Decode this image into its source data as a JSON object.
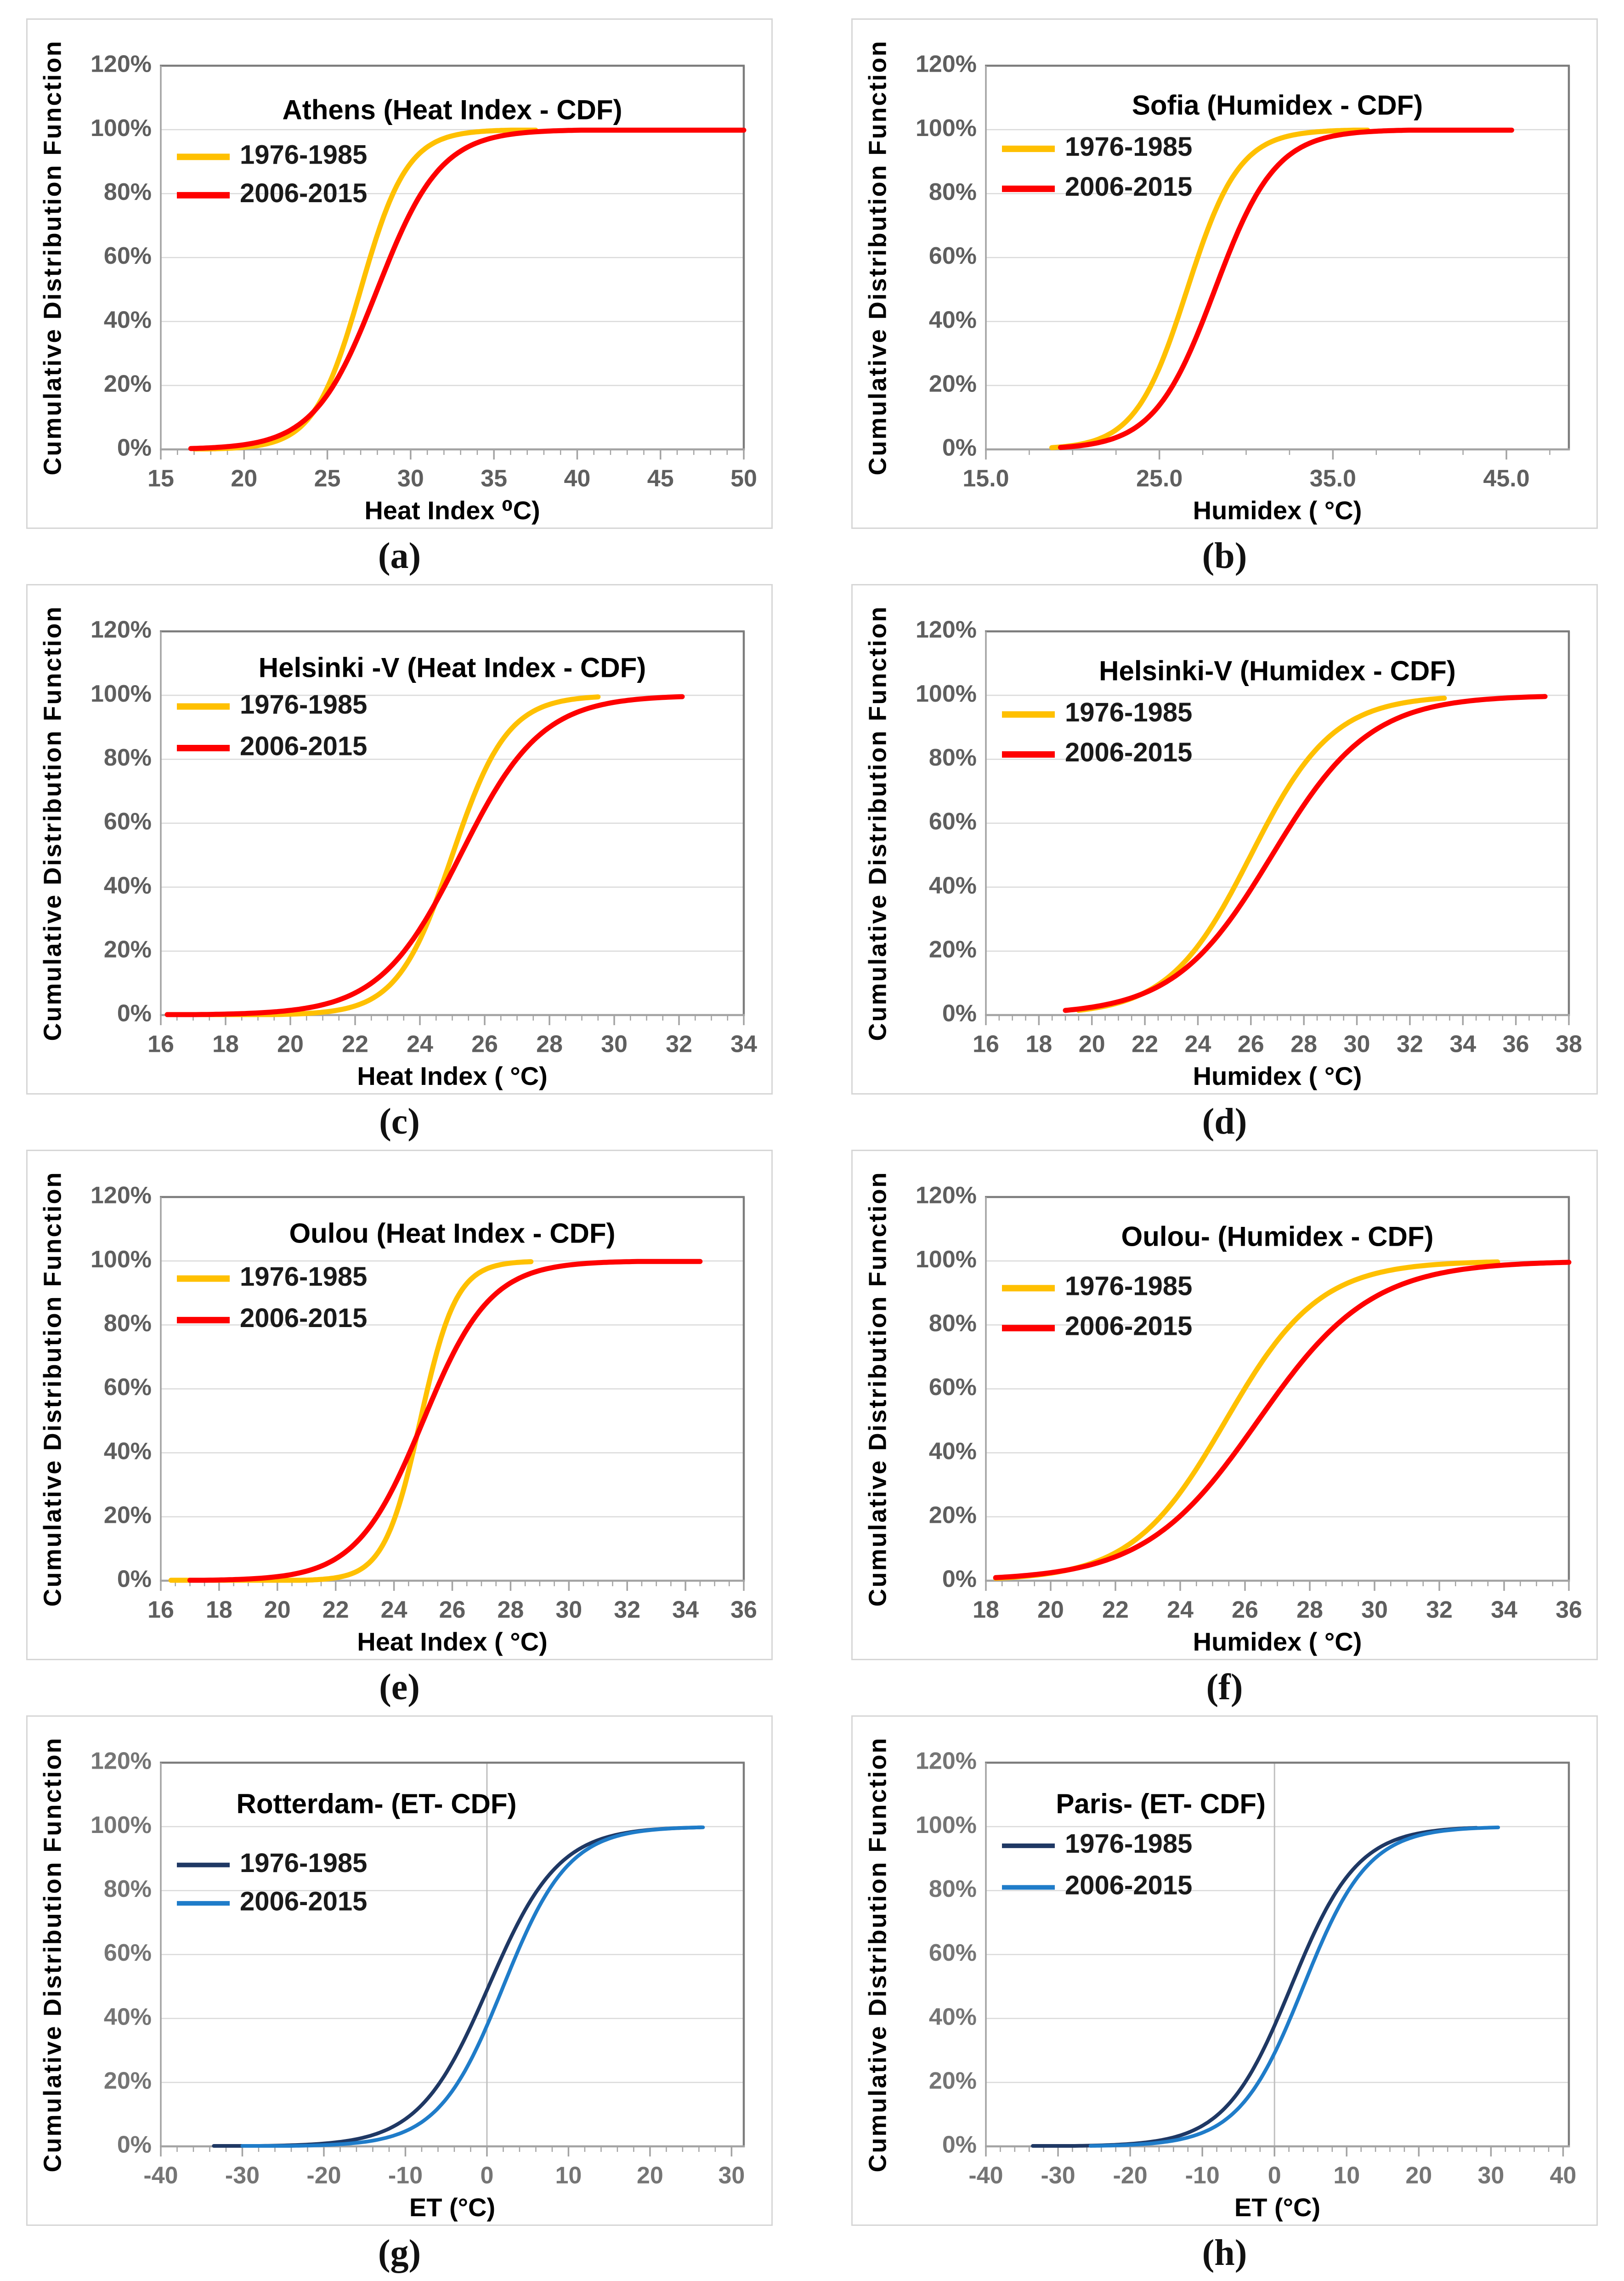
{
  "figure": {
    "y_axis": {
      "title": "Cumulative Distribution Function",
      "tick_labels": [
        "0%",
        "20%",
        "40%",
        "60%",
        "80%",
        "100%",
        "120%"
      ],
      "tick_pcts": [
        0,
        20,
        40,
        60,
        80,
        100,
        120
      ],
      "gridline_pcts": [
        20,
        40,
        60,
        80,
        100
      ],
      "max_pct": 120
    },
    "percentiles": [
      1,
      5,
      10,
      25,
      50,
      75,
      90,
      95,
      99
    ],
    "legend_labels": [
      "1976-1985",
      "2006-2015"
    ]
  },
  "palette": {
    "gold": "#FFC000",
    "red": "#FE0000",
    "navy": "#1F3864",
    "blue": "#1F7CC9",
    "grid": "#DADADA",
    "axis": "#A3A3A3",
    "border": "#7C7C7C",
    "zero_line": "#BFBFBF",
    "title_text": "#000000",
    "legend_text": "#1A1A1A",
    "box_border": "#D6D6D6"
  },
  "chart_data": [
    {
      "id": "a",
      "panel_label": "(a)",
      "type": "line",
      "title": "Athens (Heat Index - CDF)",
      "xlabel": "Heat Index ⁰C)",
      "ylabel": "Cumulative Distribution Function",
      "x_min": 15,
      "x_max": 50,
      "x_minor_step": 1,
      "x_tick_labels": [
        "15",
        "20",
        "25",
        "30",
        "35",
        "40",
        "45",
        "50"
      ],
      "zero_gridline": false,
      "tick_color": "#5F5F5F",
      "title_pct": 105.5,
      "title_cx": 0.5,
      "legend": {
        "rows_pct": [
          91.5,
          79.5
        ]
      },
      "curve_width": 11,
      "swatch_width": 14,
      "series": [
        {
          "label": "1976-1985",
          "color_key": "gold",
          "logistic": {
            "median": 27.0,
            "scale": 1.4
          },
          "x_start": 17.0,
          "x_end": 37.5,
          "x_at_percentiles": [
            20.6,
            22.9,
            23.9,
            25.5,
            27.0,
            28.5,
            30.1,
            31.1,
            33.4
          ]
        },
        {
          "label": "2006-2015",
          "color_key": "red",
          "logistic": {
            "median": 28.0,
            "scale": 1.9
          },
          "x_start": 16.8,
          "x_end": 50.0,
          "x_at_percentiles": [
            19.3,
            22.4,
            23.8,
            25.9,
            28.0,
            30.1,
            32.2,
            33.6,
            36.7
          ]
        }
      ]
    },
    {
      "id": "b",
      "panel_label": "(b)",
      "type": "line",
      "title": "Sofia (Humidex - CDF)",
      "xlabel": "Humidex ( °C)",
      "ylabel": "Cumulative Distribution Function",
      "x_min": 15,
      "x_max": 48.6,
      "x_minor_step": 2.5,
      "x_tick_labels": [
        "15.0",
        "25.0",
        "35.0",
        "45.0"
      ],
      "zero_gridline": false,
      "tick_color": "#5F5F5F",
      "title_pct": 107,
      "title_cx": 0.5,
      "legend": {
        "rows_pct": [
          94,
          81.5
        ]
      },
      "curve_width": 11,
      "swatch_width": 14,
      "series": [
        {
          "label": "1976-1985",
          "color_key": "gold",
          "logistic": {
            "median": 26.6,
            "scale": 1.5
          },
          "x_start": 18.8,
          "x_end": 37.0,
          "x_at_percentiles": [
            19.7,
            22.2,
            23.3,
            25.0,
            26.6,
            28.2,
            29.9,
            31.0,
            33.5
          ]
        },
        {
          "label": "2006-2015",
          "color_key": "red",
          "logistic": {
            "median": 28.2,
            "scale": 1.75
          },
          "x_start": 19.3,
          "x_end": 45.3,
          "x_at_percentiles": [
            20.2,
            23.0,
            24.4,
            26.3,
            28.2,
            30.1,
            32.0,
            33.4,
            36.2
          ]
        }
      ]
    },
    {
      "id": "c",
      "panel_label": "(c)",
      "type": "line",
      "title": "Helsinki -V (Heat Index - CDF)",
      "xlabel": "Heat Index ( °C)",
      "ylabel": "Cumulative Distribution Function",
      "x_min": 16,
      "x_max": 34,
      "x_minor_step": 0.5,
      "x_tick_labels": [
        "16",
        "18",
        "20",
        "22",
        "24",
        "26",
        "28",
        "30",
        "32",
        "34"
      ],
      "zero_gridline": false,
      "tick_color": "#5F5F5F",
      "title_pct": 108,
      "title_cx": 0.5,
      "legend": {
        "rows_pct": [
          96.5,
          83.5
        ]
      },
      "curve_width": 11,
      "swatch_width": 14,
      "series": [
        {
          "label": "1976-1985",
          "color_key": "gold",
          "logistic": {
            "median": 25.0,
            "scale": 0.85
          },
          "x_start": 16.2,
          "x_end": 29.5,
          "x_at_percentiles": [
            21.1,
            22.5,
            23.1,
            24.1,
            25.0,
            25.9,
            26.9,
            27.5,
            28.9
          ]
        },
        {
          "label": "2006-2015",
          "color_key": "red",
          "logistic": {
            "median": 25.25,
            "scale": 1.25
          },
          "x_start": 16.2,
          "x_end": 32.1,
          "x_at_percentiles": [
            19.5,
            21.6,
            22.5,
            23.9,
            25.3,
            26.6,
            28.0,
            28.9,
            31.0
          ]
        }
      ]
    },
    {
      "id": "d",
      "panel_label": "(d)",
      "type": "line",
      "title": "Helsinki-V (Humidex - CDF)",
      "xlabel": "Humidex ( °C)",
      "ylabel": "Cumulative Distribution Function",
      "x_min": 16,
      "x_max": 38,
      "x_minor_step": 0.5,
      "x_tick_labels": [
        "16",
        "18",
        "20",
        "22",
        "24",
        "26",
        "28",
        "30",
        "32",
        "34",
        "36",
        "38"
      ],
      "zero_gridline": false,
      "tick_color": "#5F5F5F",
      "title_pct": 107,
      "title_cx": 0.5,
      "legend": {
        "rows_pct": [
          94,
          81.5
        ]
      },
      "curve_width": 11,
      "swatch_width": 14,
      "series": [
        {
          "label": "1976-1985",
          "color_key": "gold",
          "logistic": {
            "median": 26.0,
            "scale": 1.55
          },
          "x_start": 19.5,
          "x_end": 33.3,
          "x_at_percentiles": [
            18.9,
            21.4,
            22.6,
            24.3,
            26.0,
            27.7,
            29.4,
            30.6,
            33.1
          ]
        },
        {
          "label": "2006-2015",
          "color_key": "red",
          "logistic": {
            "median": 26.8,
            "scale": 1.85
          },
          "x_start": 19.0,
          "x_end": 37.1,
          "x_at_percentiles": [
            18.3,
            21.4,
            22.7,
            24.8,
            26.8,
            28.8,
            30.9,
            32.2,
            35.3
          ]
        }
      ]
    },
    {
      "id": "e",
      "panel_label": "(e)",
      "type": "line",
      "title": "Oulou (Heat Index - CDF)",
      "xlabel": "Heat Index ( °C)",
      "ylabel": "Cumulative Distribution Function",
      "x_min": 16,
      "x_max": 36,
      "x_minor_step": 0.5,
      "x_tick_labels": [
        "16",
        "18",
        "20",
        "22",
        "24",
        "26",
        "28",
        "30",
        "32",
        "34",
        "36"
      ],
      "zero_gridline": false,
      "tick_color": "#5F5F5F",
      "title_pct": 108,
      "title_cx": 0.5,
      "legend": {
        "rows_pct": [
          94.5,
          81.5
        ]
      },
      "curve_width": 11,
      "swatch_width": 14,
      "series": [
        {
          "label": "1976-1985",
          "color_key": "gold",
          "logistic": {
            "median": 24.9,
            "scale": 0.62
          },
          "x_start": 16.35,
          "x_end": 28.7,
          "x_at_percentiles": [
            22.1,
            23.1,
            23.5,
            24.2,
            24.9,
            25.6,
            26.3,
            26.7,
            27.7
          ]
        },
        {
          "label": "2006-2015",
          "color_key": "red",
          "logistic": {
            "median": 25.0,
            "scale": 1.15
          },
          "x_start": 17.0,
          "x_end": 34.5,
          "x_at_percentiles": [
            19.7,
            21.6,
            22.5,
            23.7,
            25.0,
            26.3,
            27.5,
            28.4,
            30.3
          ]
        }
      ]
    },
    {
      "id": "f",
      "panel_label": "(f)",
      "type": "line",
      "title": "Oulou- (Humidex - CDF)",
      "xlabel": "Humidex ( °C)",
      "ylabel": "Cumulative Distribution Function",
      "x_min": 18,
      "x_max": 36,
      "x_minor_step": 0.5,
      "x_tick_labels": [
        "18",
        "20",
        "22",
        "24",
        "26",
        "28",
        "30",
        "32",
        "34",
        "36"
      ],
      "zero_gridline": false,
      "tick_color": "#5F5F5F",
      "title_pct": 107,
      "title_cx": 0.5,
      "legend": {
        "rows_pct": [
          91.5,
          79
        ]
      },
      "curve_width": 11,
      "swatch_width": 14,
      "series": [
        {
          "label": "1976-1985",
          "color_key": "gold",
          "logistic": {
            "median": 25.4,
            "scale": 1.45
          },
          "x_start": 18.3,
          "x_end": 33.8,
          "x_at_percentiles": [
            18.7,
            21.1,
            22.2,
            23.8,
            25.4,
            27.0,
            28.6,
            29.7,
            32.1
          ]
        },
        {
          "label": "2006-2015",
          "color_key": "red",
          "logistic": {
            "median": 26.4,
            "scale": 1.75
          },
          "x_start": 18.3,
          "x_end": 36.0,
          "x_at_percentiles": [
            18.4,
            21.2,
            22.6,
            24.5,
            26.4,
            28.3,
            30.2,
            31.6,
            34.4
          ]
        }
      ]
    },
    {
      "id": "g",
      "panel_label": "(g)",
      "type": "line",
      "title": "Rotterdam- (ET- CDF)",
      "xlabel": "ET (°C)",
      "ylabel": "Cumulative Distribution Function",
      "x_min": -40,
      "x_max": 31.5,
      "x_minor_step": 2,
      "x_tick_labels": [
        "-40",
        "-30",
        "-20",
        "-10",
        "0",
        "10",
        "20",
        "30"
      ],
      "zero_gridline": true,
      "tick_color": "#757575",
      "title_pct": 106.5,
      "title_cx": 0.37,
      "legend": {
        "rows_pct": [
          88,
          76
        ]
      },
      "curve_width": 8,
      "swatch_width": 10,
      "series": [
        {
          "label": "1976-1985",
          "color_key": "navy",
          "logistic": {
            "median": 0.2,
            "scale": 4.3
          },
          "x_start": -33.5,
          "x_end": 26.3,
          "x_at_percentiles": [
            -19.6,
            -12.5,
            -9.2,
            -4.5,
            0.2,
            4.9,
            9.6,
            12.9,
            20.0
          ]
        },
        {
          "label": "2006-2015",
          "color_key": "blue",
          "logistic": {
            "median": 2.0,
            "scale": 4.0
          },
          "x_start": -30.0,
          "x_end": 26.5,
          "x_at_percentiles": [
            -16.4,
            -9.8,
            -6.8,
            -2.4,
            2.0,
            6.4,
            10.8,
            13.8,
            20.4
          ]
        }
      ]
    },
    {
      "id": "h",
      "panel_label": "(h)",
      "type": "line",
      "title": "Paris- (ET- CDF)",
      "xlabel": "ET (°C)",
      "ylabel": "Cumulative Distribution Function",
      "x_min": -40,
      "x_max": 40.8,
      "x_minor_step": 2,
      "x_tick_labels": [
        "-40",
        "-30",
        "-20",
        "-10",
        "0",
        "10",
        "20",
        "30",
        "40"
      ],
      "zero_gridline": true,
      "tick_color": "#757575",
      "title_pct": 106.5,
      "title_cx": 0.3,
      "legend": {
        "rows_pct": [
          94,
          81
        ]
      },
      "curve_width": 8,
      "swatch_width": 10,
      "series": [
        {
          "label": "1976-1985",
          "color_key": "navy",
          "logistic": {
            "median": 2.3,
            "scale": 4.6
          },
          "x_start": -33.5,
          "x_end": 28.0,
          "x_at_percentiles": [
            -18.8,
            -11.2,
            -7.8,
            -2.8,
            2.3,
            7.4,
            12.4,
            15.8,
            23.4
          ]
        },
        {
          "label": "2006-2015",
          "color_key": "blue",
          "logistic": {
            "median": 4.0,
            "scale": 4.5
          },
          "x_start": -25.5,
          "x_end": 31.0,
          "x_at_percentiles": [
            -16.7,
            -9.2,
            -5.9,
            -0.9,
            4.0,
            8.9,
            13.9,
            17.2,
            24.7
          ]
        }
      ]
    }
  ]
}
